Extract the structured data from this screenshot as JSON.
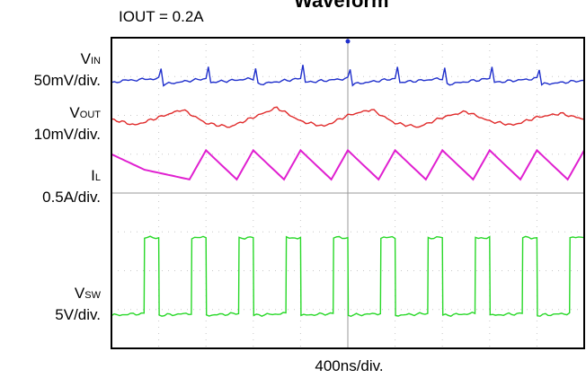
{
  "header": {
    "title": "Waveform",
    "condition": "IOUT = 0.2A"
  },
  "labels": {
    "vin": {
      "name_main": "V",
      "name_sub": "IN",
      "scale": "50mV/div."
    },
    "vout": {
      "name_main": "V",
      "name_sub": "OUT",
      "scale": "10mV/div."
    },
    "il": {
      "name_main": "I",
      "name_sub": "L",
      "scale": "0.5A/div."
    },
    "vsw": {
      "name_main": "V",
      "name_sub": "SW",
      "scale": "5V/div."
    }
  },
  "xlabel": "400ns/div.",
  "colors": {
    "vin": "#1f2fcc",
    "vout": "#e02a2a",
    "il": "#e020d0",
    "vsw": "#28d828",
    "grid": "#c8c8c8",
    "frame": "#000000"
  },
  "chart_data": {
    "type": "line",
    "title": "Waveform",
    "subtitle": "IOUT = 0.2A",
    "xlabel": "400ns/div.",
    "grid": true,
    "x_divisions": 10,
    "y_divisions": 8,
    "xlim": [
      0,
      10
    ],
    "series": [
      {
        "name": "VIN",
        "scale": "50mV/div.",
        "x": [
          0,
          0.3,
          1.0,
          1.05,
          1.1,
          2.0,
          2.05,
          2.1,
          3.0,
          3.05,
          3.1,
          4.0,
          4.05,
          4.1,
          5.0,
          5.05,
          5.1,
          6.0,
          6.05,
          6.1,
          7.0,
          7.05,
          7.1,
          8.0,
          8.05,
          8.1,
          9.0,
          9.05,
          9.1,
          10
        ],
        "y_div": [
          6.85,
          6.9,
          6.95,
          7.2,
          6.8,
          6.95,
          7.25,
          6.85,
          6.95,
          7.2,
          6.8,
          6.95,
          7.3,
          6.85,
          6.95,
          7.2,
          6.8,
          6.95,
          7.25,
          6.85,
          6.95,
          7.2,
          6.8,
          6.95,
          7.25,
          6.85,
          6.95,
          7.2,
          6.8,
          6.9
        ]
      },
      {
        "name": "VOUT",
        "scale": "10mV/div.",
        "x": [
          0,
          0.5,
          1.0,
          1.5,
          2.0,
          2.5,
          3.0,
          3.5,
          4.0,
          4.5,
          5.0,
          5.5,
          6.0,
          6.5,
          7.0,
          7.5,
          8.0,
          8.5,
          9.0,
          9.5,
          10
        ],
        "y_div": [
          5.9,
          5.75,
          5.95,
          6.15,
          5.8,
          5.7,
          5.95,
          6.2,
          5.85,
          5.72,
          6.0,
          6.15,
          5.8,
          5.7,
          5.95,
          6.1,
          5.85,
          5.75,
          5.95,
          6.05,
          5.9
        ]
      },
      {
        "name": "IL",
        "scale": "0.5A/div.",
        "x": [
          0,
          0.7,
          1.65,
          2.0,
          2.65,
          3.0,
          3.65,
          4.0,
          4.65,
          5.0,
          5.65,
          6.0,
          6.65,
          7.0,
          7.65,
          8.0,
          8.65,
          9.0,
          9.65,
          10
        ],
        "y_div": [
          5.0,
          4.6,
          4.35,
          5.1,
          4.35,
          5.1,
          4.35,
          5.1,
          4.35,
          5.1,
          4.35,
          5.1,
          4.35,
          5.1,
          4.35,
          5.1,
          4.35,
          5.1,
          4.35,
          5.1
        ]
      },
      {
        "name": "VSW",
        "scale": "5V/div.",
        "x": [
          0,
          0.69,
          0.7,
          1.0,
          1.01,
          1.69,
          1.7,
          2.0,
          2.01,
          2.69,
          2.7,
          3.0,
          3.01,
          3.69,
          3.7,
          4.0,
          4.01,
          4.69,
          4.7,
          5.0,
          5.01,
          5.69,
          5.7,
          6.0,
          6.01,
          6.69,
          6.7,
          7.0,
          7.01,
          7.69,
          7.7,
          8.0,
          8.01,
          8.69,
          8.7,
          9.0,
          9.01,
          9.69,
          9.7,
          10
        ],
        "y_div": [
          0.85,
          0.9,
          2.85,
          2.85,
          0.85,
          0.9,
          2.85,
          2.85,
          0.85,
          0.9,
          2.85,
          2.85,
          0.85,
          0.9,
          2.85,
          2.85,
          0.85,
          0.9,
          2.85,
          2.85,
          0.85,
          0.9,
          2.85,
          2.85,
          0.85,
          0.9,
          2.85,
          2.85,
          0.85,
          0.9,
          2.85,
          2.85,
          0.85,
          0.9,
          2.85,
          2.85,
          0.85,
          0.9,
          2.85,
          2.85
        ]
      }
    ]
  }
}
